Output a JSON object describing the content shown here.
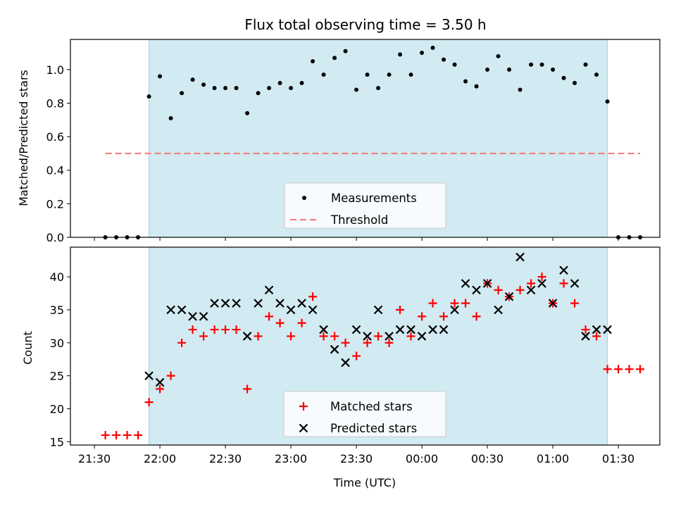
{
  "chart_data": [
    {
      "type": "scatter",
      "title": "Flux total observing time = 3.50 h",
      "xlabel": "",
      "ylabel": "Matched/Predicted stars",
      "ylim": [
        0,
        1.18
      ],
      "yticks": [
        "0.0",
        "0.2",
        "0.4",
        "0.6",
        "0.8",
        "1.0"
      ],
      "shaded_region": {
        "from": "21:55",
        "to": "01:25",
        "color": "#add8e6"
      },
      "threshold": {
        "name": "Threshold",
        "y": 0.5,
        "from": "21:35",
        "to": "01:40",
        "color": "#f08080"
      },
      "legend_placement": "bottom-center",
      "series": [
        {
          "name": "Measurements",
          "marker": "dot",
          "color": "#000000",
          "times": [
            "21:35",
            "21:40",
            "21:45",
            "21:50",
            "21:55",
            "22:00",
            "22:05",
            "22:10",
            "22:15",
            "22:20",
            "22:25",
            "22:30",
            "22:35",
            "22:40",
            "22:45",
            "22:50",
            "22:55",
            "23:00",
            "23:05",
            "23:10",
            "23:15",
            "23:20",
            "23:25",
            "23:30",
            "23:35",
            "23:40",
            "23:45",
            "23:50",
            "23:55",
            "00:00",
            "00:05",
            "00:10",
            "00:15",
            "00:20",
            "00:25",
            "00:30",
            "00:35",
            "00:40",
            "00:45",
            "00:50",
            "00:55",
            "01:00",
            "01:05",
            "01:10",
            "01:15",
            "01:20",
            "01:25",
            "01:30",
            "01:35",
            "01:40"
          ],
          "values": [
            0.0,
            0.0,
            0.0,
            0.0,
            0.84,
            0.96,
            0.71,
            0.86,
            0.94,
            0.91,
            0.89,
            0.89,
            0.89,
            0.74,
            0.86,
            0.89,
            0.92,
            0.89,
            0.92,
            1.05,
            0.97,
            1.07,
            1.11,
            0.88,
            0.97,
            0.89,
            0.97,
            1.09,
            0.97,
            1.1,
            1.13,
            1.06,
            1.03,
            0.93,
            0.9,
            1.0,
            1.08,
            1.0,
            0.88,
            1.03,
            1.03,
            1.0,
            0.95,
            0.92,
            1.03,
            0.97,
            0.81,
            0.0,
            0.0,
            0.0
          ]
        }
      ]
    },
    {
      "type": "scatter",
      "title": "",
      "xlabel": "Time (UTC)",
      "ylabel": "Count",
      "ylim": [
        14.5,
        44.5
      ],
      "yticks": [
        "15",
        "20",
        "25",
        "30",
        "35",
        "40"
      ],
      "xticks": [
        "21:30",
        "22:00",
        "22:30",
        "23:00",
        "23:30",
        "00:00",
        "00:30",
        "01:00",
        "01:30"
      ],
      "legend_placement": "bottom-center",
      "series": [
        {
          "name": "Matched stars",
          "marker": "plus",
          "color": "#ff0000",
          "times": [
            "21:35",
            "21:40",
            "21:45",
            "21:50",
            "21:55",
            "22:00",
            "22:05",
            "22:10",
            "22:15",
            "22:20",
            "22:25",
            "22:30",
            "22:35",
            "22:40",
            "22:45",
            "22:50",
            "22:55",
            "23:00",
            "23:05",
            "23:10",
            "23:15",
            "23:20",
            "23:25",
            "23:30",
            "23:35",
            "23:40",
            "23:45",
            "23:50",
            "23:55",
            "00:00",
            "00:05",
            "00:10",
            "00:15",
            "00:20",
            "00:25",
            "00:30",
            "00:35",
            "00:40",
            "00:45",
            "00:50",
            "00:55",
            "01:00",
            "01:05",
            "01:10",
            "01:15",
            "01:20",
            "01:25",
            "01:30",
            "01:35",
            "01:40"
          ],
          "values": [
            16,
            16,
            16,
            16,
            21,
            23,
            25,
            30,
            32,
            31,
            32,
            32,
            32,
            23,
            31,
            34,
            33,
            31,
            33,
            37,
            31,
            31,
            30,
            28,
            30,
            31,
            30,
            35,
            31,
            34,
            36,
            34,
            36,
            36,
            34,
            39,
            38,
            37,
            38,
            39,
            40,
            36,
            39,
            36,
            32,
            31,
            26,
            26,
            26,
            26
          ]
        },
        {
          "name": "Predicted stars",
          "marker": "x",
          "color": "#000000",
          "times": [
            "21:55",
            "22:00",
            "22:05",
            "22:10",
            "22:15",
            "22:20",
            "22:25",
            "22:30",
            "22:35",
            "22:40",
            "22:45",
            "22:50",
            "22:55",
            "23:00",
            "23:05",
            "23:10",
            "23:15",
            "23:20",
            "23:25",
            "23:30",
            "23:35",
            "23:40",
            "23:45",
            "23:50",
            "23:55",
            "00:00",
            "00:05",
            "00:10",
            "00:15",
            "00:20",
            "00:25",
            "00:30",
            "00:35",
            "00:40",
            "00:45",
            "00:50",
            "00:55",
            "01:00",
            "01:05",
            "01:10",
            "01:15",
            "01:20",
            "01:25"
          ],
          "values": [
            25,
            24,
            35,
            35,
            34,
            34,
            36,
            36,
            36,
            31,
            36,
            38,
            36,
            35,
            36,
            35,
            32,
            29,
            27,
            32,
            31,
            35,
            31,
            32,
            32,
            31,
            32,
            32,
            35,
            39,
            38,
            39,
            35,
            37,
            43,
            38,
            39,
            36,
            41,
            39,
            31,
            32,
            32
          ]
        }
      ]
    }
  ]
}
